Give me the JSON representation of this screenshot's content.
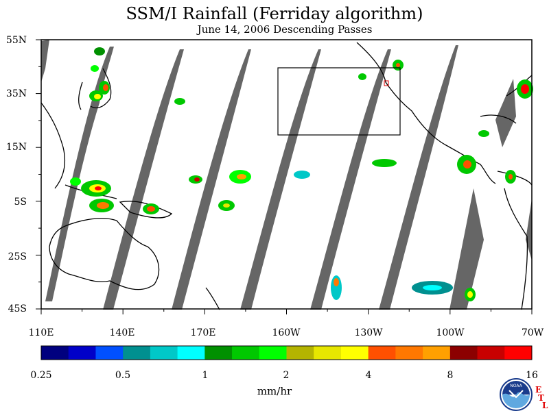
{
  "title": "SSM/I Rainfall (Ferriday algorithm)",
  "subtitle": "June 14, 2006  Descending Passes",
  "map": {
    "lat_labels": [
      "55N",
      "35N",
      "15N",
      "5S",
      "25S",
      "45S"
    ],
    "lon_labels": [
      "110E",
      "140E",
      "170E",
      "160W",
      "130W",
      "100W",
      "70W"
    ],
    "lat_range": [
      -45,
      55
    ],
    "lon_range": [
      "110E",
      "70W"
    ],
    "swath_color": "#666666"
  },
  "colorbar": {
    "units": "mm/hr",
    "tick_labels": [
      "0.25",
      "0.5",
      "1",
      "2",
      "4",
      "8",
      "16"
    ],
    "colors": [
      "#00007f",
      "#0000c8",
      "#0050ff",
      "#009090",
      "#00c8c8",
      "#00ffff",
      "#009000",
      "#00c800",
      "#00ff00",
      "#b4b400",
      "#e6e600",
      "#ffff00",
      "#ff5000",
      "#ff7800",
      "#ffa000",
      "#8c0000",
      "#c80000",
      "#ff0000"
    ]
  },
  "logo": {
    "text": "NOAA",
    "letters": [
      "E",
      "T",
      "L"
    ]
  }
}
